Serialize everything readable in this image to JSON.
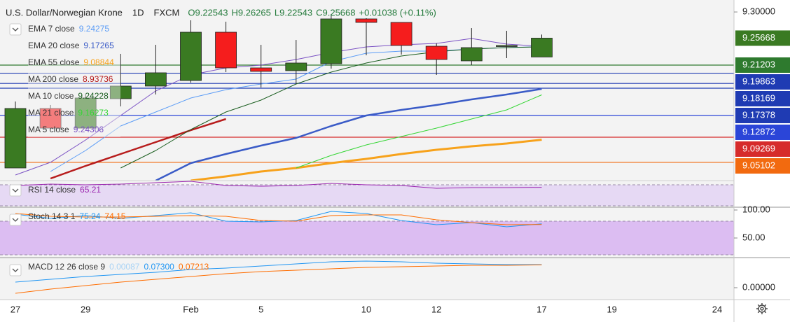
{
  "header": {
    "title": "U.S. Dollar/Norwegian Krone",
    "interval": "1D",
    "source": "FXCM",
    "quote": [
      "O9.22543",
      "H9.26265",
      "L9.22543",
      "C9.25668",
      "+0.01038 (+0.11%)"
    ]
  },
  "chart_data": [
    {
      "type": "candlestick",
      "pane": "price",
      "categories": [
        "27",
        null,
        "29",
        null,
        null,
        "Feb",
        null,
        "5",
        null,
        null,
        "10",
        null,
        "12",
        null,
        null,
        "17",
        null,
        "19",
        null,
        null,
        "24"
      ],
      "open": [
        9.0417,
        9.1402,
        9.1077,
        9.1564,
        9.1773,
        9.1865,
        9.2665,
        9.2074,
        9.2028,
        9.2143,
        9.2885,
        9.2827,
        9.2433,
        9.219,
        9.2433,
        9.22543,
        null,
        null,
        null,
        null,
        null
      ],
      "high": [
        9.1518,
        9.146,
        9.1634,
        9.2306,
        9.2456,
        9.2862,
        9.2839,
        9.2456,
        9.2537,
        9.2966,
        9.2897,
        9.2827,
        9.248,
        9.2734,
        9.2688,
        9.26265,
        null,
        null,
        null,
        null,
        null
      ],
      "low": [
        9.0417,
        9.1077,
        9.1077,
        9.1437,
        9.1634,
        9.1831,
        9.2004,
        9.175,
        9.1807,
        9.2062,
        9.2283,
        9.2294,
        9.1958,
        9.212,
        9.2236,
        9.22543,
        null,
        null,
        null,
        null,
        null
      ],
      "close": [
        9.1402,
        9.1077,
        9.1576,
        9.1773,
        9.1993,
        9.2665,
        9.2074,
        9.2016,
        9.2155,
        9.2885,
        9.2827,
        9.2445,
        9.2213,
        9.241,
        9.2445,
        9.25668,
        null,
        null,
        null,
        null,
        null
      ],
      "up_color": "#3a7a22",
      "down_color": "#f51d1d",
      "ylim": [
        9.0208,
        9.3198
      ],
      "yticks": [
        {
          "value": 9.3,
          "label": "9.30000"
        }
      ],
      "series": [
        {
          "name": "EMA 7 close",
          "color": "#5b9cf6",
          "width": 1,
          "legend_value": 9.24275,
          "values": [
            null,
            9.0359,
            9.0706,
            9.1112,
            9.1344,
            9.1575,
            9.1714,
            9.1807,
            9.1888,
            9.2178,
            9.2317,
            9.2352,
            9.2352,
            9.2387,
            9.241,
            9.24275,
            null,
            null,
            null,
            null,
            null
          ]
        },
        {
          "name": "EMA 20 close",
          "color": "#3a5bc7",
          "width": 2.5,
          "legend_value": 9.17265,
          "values": [
            null,
            null,
            null,
            null,
            9.0208,
            9.0498,
            9.0648,
            9.0787,
            9.0915,
            9.1112,
            9.1286,
            9.1378,
            9.146,
            9.1552,
            9.1633,
            9.17265,
            null,
            null,
            null,
            null,
            null
          ]
        },
        {
          "name": "EMA 55 close",
          "color": "#f7a21b",
          "width": 3,
          "legend_value": 9.08844,
          "values": [
            null,
            null,
            null,
            null,
            null,
            9.0208,
            9.0278,
            9.0359,
            9.0417,
            9.0498,
            9.0567,
            9.0648,
            9.0718,
            9.0776,
            9.0822,
            9.08844,
            null,
            null,
            null,
            null,
            null
          ]
        },
        {
          "name": "MA 200 close",
          "color": "#b71c1c",
          "width": 2.5,
          "legend_value": 8.93736,
          "values": [
            null,
            9.0243,
            9.0451,
            9.0648,
            9.0845,
            9.1042,
            9.1228,
            null,
            null,
            null,
            null,
            null,
            null,
            null,
            null,
            null,
            null,
            null,
            null,
            null,
            null
          ]
        },
        {
          "name": "MA 10 close",
          "color": "#1b5e20",
          "width": 1,
          "legend_value": 9.24228,
          "values": [
            null,
            null,
            null,
            9.0417,
            9.0706,
            9.1054,
            9.1344,
            9.1541,
            9.1807,
            9.2004,
            9.2155,
            9.2271,
            9.234,
            9.2387,
            9.241,
            9.24228,
            null,
            null,
            null,
            null,
            null
          ]
        },
        {
          "name": "MA 21 close",
          "color": "#35d635",
          "width": 1,
          "legend_value": 9.16273,
          "values": [
            null,
            null,
            null,
            null,
            null,
            null,
            null,
            null,
            9.0417,
            9.0625,
            9.0799,
            9.0938,
            9.1077,
            9.1228,
            9.1378,
            9.16273,
            null,
            null,
            null,
            null,
            null
          ]
        },
        {
          "name": "MA 5 close",
          "color": "#7b52c4",
          "width": 1,
          "legend_value": 9.24306,
          "values": [
            9.0301,
            9.051,
            9.088,
            9.1286,
            9.1692,
            9.1958,
            9.2074,
            9.212,
            9.2213,
            9.2329,
            9.2422,
            9.2456,
            9.248,
            9.2561,
            9.2468,
            9.24306,
            null,
            null,
            null,
            null,
            null
          ]
        }
      ],
      "last_price": {
        "value": 9.25668,
        "color": "#3a7a22"
      },
      "horizontal_lines": [
        {
          "value": 9.21203,
          "color": "#2e7a2e"
        },
        {
          "value": 9.19863,
          "color": "#1f3bb3"
        },
        {
          "value": 9.18169,
          "color": "#1f3bb3"
        },
        {
          "value": 9.17378,
          "color": "#1f3bb3"
        },
        {
          "value": 9.12872,
          "color": "#2b45d8"
        },
        {
          "value": 9.09269,
          "color": "#d62b2b"
        },
        {
          "value": 9.05102,
          "color": "#f26a0f"
        }
      ]
    },
    {
      "type": "line",
      "pane": "rsi",
      "title": "RSI 14 close",
      "ylim": [
        27.3,
        78
      ],
      "bands": [
        30,
        70
      ],
      "band_color": "#e6d9f4",
      "series": [
        {
          "color": "#9c27b0",
          "width": 1,
          "legend_value": 65.21,
          "values": [
            68.7,
            71.3,
            70,
            71.3,
            74,
            76.7,
            68.7,
            67.3,
            68.7,
            72.7,
            70,
            68.7,
            63.3,
            64.7,
            64.7,
            65.21,
            null,
            null,
            null,
            null,
            null
          ]
        }
      ]
    },
    {
      "type": "line",
      "pane": "stoch",
      "title": "Stoch 14 3 1",
      "ylim": [
        15,
        105
      ],
      "yticks": [
        {
          "value": 100,
          "label": "100.00"
        },
        {
          "value": 50,
          "label": "50.00"
        }
      ],
      "bands": [
        20,
        80
      ],
      "band_color": "#dcbdf2",
      "series": [
        {
          "color": "#2196f3",
          "width": 1,
          "legend_value": 75.24,
          "values": [
            92.5,
            85,
            90,
            85,
            90,
            95,
            80,
            78.75,
            81.25,
            97.5,
            93.75,
            81.25,
            73.75,
            77.5,
            70,
            75.24,
            null,
            null,
            null,
            null,
            null
          ]
        },
        {
          "color": "#ff6d00",
          "width": 1,
          "legend_value": 74.15,
          "values": [
            93.75,
            88.75,
            87.5,
            87.5,
            88.75,
            90,
            88.75,
            81.25,
            80,
            90,
            91.25,
            91.25,
            82.5,
            77.5,
            73.75,
            74.15,
            null,
            null,
            null,
            null,
            null
          ]
        }
      ]
    },
    {
      "type": "line",
      "pane": "macd",
      "title": "MACD 12 26 close 9",
      "ylim": [
        -0.0376,
        0.0951
      ],
      "yticks": [
        {
          "value": 0,
          "label": "0.00000"
        }
      ],
      "series": [
        {
          "color": "#a9d3f5",
          "width": 1,
          "legend_value": 0.00087
        },
        {
          "color": "#2196f3",
          "width": 1,
          "legend_value": {
            "value": 0.073,
            "label": "0.07300"
          },
          "values": [
            0.0177,
            0.0265,
            0.0354,
            0.042,
            0.0487,
            0.0575,
            0.0619,
            0.0686,
            0.0752,
            0.0819,
            0.0841,
            0.0819,
            0.0774,
            0.0752,
            0.073,
            0.073,
            null,
            null,
            null,
            null,
            null
          ]
        },
        {
          "color": "#ff6d00",
          "width": 1,
          "legend_value": 0.07213,
          "values": [
            -0.0177,
            -0.0044,
            0.0066,
            0.0177,
            0.0265,
            0.0354,
            0.0442,
            0.0509,
            0.0553,
            0.0597,
            0.0642,
            0.0664,
            0.0686,
            0.0708,
            0.0708,
            0.07213,
            null,
            null,
            null,
            null,
            null
          ]
        }
      ]
    }
  ]
}
